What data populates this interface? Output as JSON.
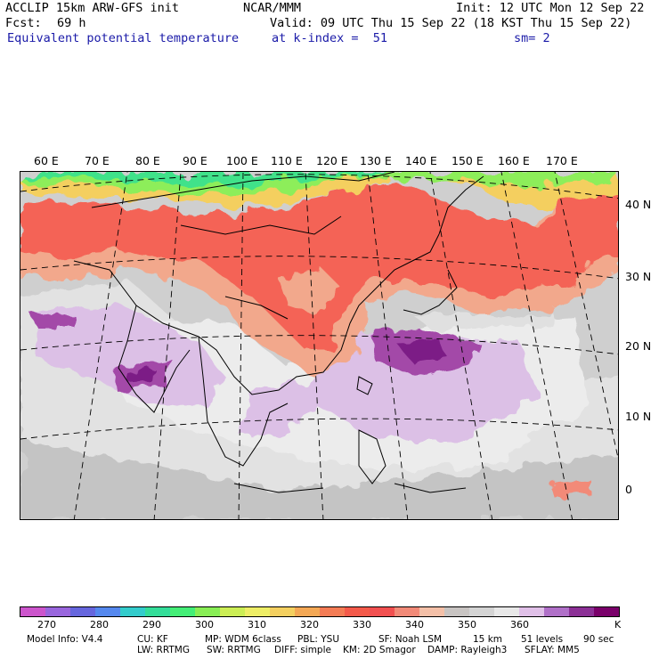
{
  "header": {
    "left1": "ACCLIP 15km ARW-GFS init",
    "fcst_label": "Fcst:",
    "fcst_value": "69 h",
    "field": "Equivalent potential temperature",
    "center": "NCAR/MMM",
    "init": "Init: 12 UTC Mon 12 Sep 22",
    "valid": "Valid: 09 UTC Thu 15 Sep 22 (18 KST Thu 15 Sep 22)",
    "level": "at k-index =  51",
    "smooth": "sm= 2"
  },
  "map": {
    "lon_labels": [
      "60 E",
      "70 E",
      "80 E",
      "90 E",
      "100 E",
      "110 E",
      "120 E",
      "130 E",
      "140 E",
      "150 E",
      "160 E",
      "170 E"
    ],
    "lat_labels": [
      "40 N",
      "30 N",
      "20 N",
      "10 N",
      "0"
    ]
  },
  "colorbar": {
    "colors": [
      "#cc55cc",
      "#9966dd",
      "#6666dd",
      "#5588ee",
      "#33cccc",
      "#33dd99",
      "#44ee77",
      "#88ee55",
      "#ccee55",
      "#eeee66",
      "#f4d060",
      "#f4a855",
      "#f47c55",
      "#f45a4a",
      "#f25050",
      "#f28a78",
      "#f4c0a8",
      "#c8c4c2",
      "#d4d4d4",
      "#e8e8e8",
      "#e0c0e8",
      "#b070c8",
      "#8c3096",
      "#7a006a"
    ],
    "tick_labels": [
      "270",
      "280",
      "290",
      "300",
      "310",
      "320",
      "330",
      "340",
      "350",
      "360",
      "K"
    ],
    "unit": "K"
  },
  "footer": {
    "line1_a": "Model Info: V4.4",
    "line1_b": "CU: KF",
    "line1_c": "MP: WDM 6class",
    "line1_d": "PBL: YSU",
    "line1_e": "SF: Noah LSM",
    "line1_f": "15 km",
    "line1_g": "51 levels",
    "line1_h": "90 sec",
    "line2_a": "LW: RRTMG",
    "line2_b": "SW: RRTMG",
    "line2_c": "DIFF: simple",
    "line2_d": "KM: 2D Smagor",
    "line2_e": "DAMP: Rayleigh3",
    "line2_f": "SFLAY: MM5"
  }
}
